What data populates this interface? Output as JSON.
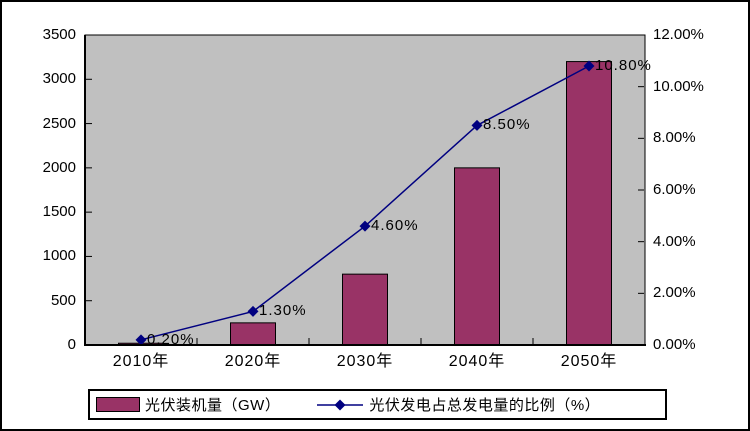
{
  "chart_data": {
    "type": "combo-bar-line",
    "title": "",
    "categories": [
      "2010年",
      "2020年",
      "2030年",
      "2040年",
      "2050年"
    ],
    "series": [
      {
        "name": "光伏装机量（GW）",
        "type": "bar",
        "axis": "left",
        "values": [
          20,
          250,
          800,
          2000,
          3200
        ],
        "color": "#993366"
      },
      {
        "name": "光伏发电占总发电量的比例（%）",
        "type": "line",
        "axis": "right",
        "marker": "diamond",
        "values": [
          0.2,
          1.3,
          4.6,
          8.5,
          10.8
        ],
        "point_labels": [
          "0.20%",
          "1.30%",
          "4.60%",
          "8.50%",
          "10.80%"
        ],
        "color": "#000080"
      }
    ],
    "left_axis": {
      "min": 0,
      "max": 3500,
      "step": 500,
      "tick_labels": [
        "0",
        "500",
        "1000",
        "1500",
        "2000",
        "2500",
        "3000",
        "3500"
      ]
    },
    "right_axis": {
      "min": 0,
      "max": 12,
      "step": 2,
      "tick_labels": [
        "0.00%",
        "2.00%",
        "4.00%",
        "6.00%",
        "8.00%",
        "10.00%",
        "12.00%"
      ]
    },
    "grid": false,
    "plot_background": "#c0c0c0",
    "legend_position": "bottom"
  },
  "legend": {
    "items": [
      {
        "label": "光伏装机量（GW）",
        "swatch": "bar"
      },
      {
        "label": "光伏发电占总发电量的比例（%）",
        "swatch": "line-diamond"
      }
    ]
  },
  "colors": {
    "bar_fill": "#993366",
    "line": "#000080",
    "plot_bg": "#c0c0c0",
    "chart_bg": "#ffffff",
    "axis": "#000000",
    "text": "#000000"
  }
}
